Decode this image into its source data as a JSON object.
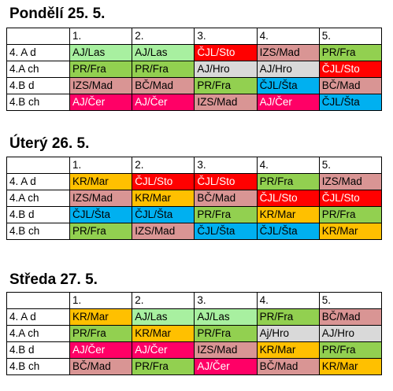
{
  "colors": {
    "lightgreen": "#a8f0a0",
    "green": "#92d050",
    "red": "#ff0000",
    "magenta": "#ff0066",
    "rose": "#d99594",
    "blue": "#00b0f0",
    "gray": "#d9d9d9",
    "orange": "#ffc000"
  },
  "days": [
    {
      "title": "Pondělí 25. 5.",
      "periods": [
        "1.",
        "2.",
        "3.",
        "4.",
        "5."
      ],
      "rows": [
        {
          "cls": "4. A d",
          "cells": [
            {
              "t": "AJ/Las",
              "c": "lightgreen"
            },
            {
              "t": "AJ/Las",
              "c": "lightgreen"
            },
            {
              "t": "ČJL/Sto",
              "c": "red"
            },
            {
              "t": "IZS/Mad",
              "c": "rose"
            },
            {
              "t": "PR/Fra",
              "c": "green"
            }
          ]
        },
        {
          "cls": "4.A ch",
          "cells": [
            {
              "t": "PR/Fra",
              "c": "green"
            },
            {
              "t": "PR/Fra",
              "c": "green"
            },
            {
              "t": "AJ/Hro",
              "c": "gray"
            },
            {
              "t": "AJ/Hro",
              "c": "gray"
            },
            {
              "t": "ČJL/Sto",
              "c": "red"
            }
          ]
        },
        {
          "cls": "4.B d",
          "cells": [
            {
              "t": "IZS/Mad",
              "c": "rose"
            },
            {
              "t": "BČ/Mad",
              "c": "rose"
            },
            {
              "t": "PR/Fra",
              "c": "green"
            },
            {
              "t": "ČJL/Šta",
              "c": "blue"
            },
            {
              "t": "BČ/Mad",
              "c": "rose"
            }
          ]
        },
        {
          "cls": "4.B ch",
          "cells": [
            {
              "t": "AJ/Čer",
              "c": "magenta"
            },
            {
              "t": "AJ/Čer",
              "c": "magenta"
            },
            {
              "t": "IZS/Mad",
              "c": "rose"
            },
            {
              "t": "AJ/Čer",
              "c": "magenta"
            },
            {
              "t": "ČJL/Šta",
              "c": "blue"
            }
          ]
        }
      ]
    },
    {
      "title": "Úterý 26. 5.",
      "periods": [
        "1.",
        "2.",
        "3.",
        "4.",
        "5."
      ],
      "rows": [
        {
          "cls": "4. A d",
          "cells": [
            {
              "t": "KR/Mar",
              "c": "orange"
            },
            {
              "t": "ČJL/Sto",
              "c": "red"
            },
            {
              "t": "ČJL/Sto",
              "c": "red"
            },
            {
              "t": "PR/Fra",
              "c": "green"
            },
            {
              "t": "IZS/Mad",
              "c": "rose"
            }
          ]
        },
        {
          "cls": "4.A ch",
          "cells": [
            {
              "t": "IZS/Mad",
              "c": "rose"
            },
            {
              "t": "KR/Mar",
              "c": "orange"
            },
            {
              "t": "BČ/Mad",
              "c": "rose"
            },
            {
              "t": "ČJL/Sto",
              "c": "red"
            },
            {
              "t": "ČJL/Sto",
              "c": "red"
            }
          ]
        },
        {
          "cls": "4.B d",
          "cells": [
            {
              "t": "ČJL/Šta",
              "c": "blue"
            },
            {
              "t": "ČJL/Šta",
              "c": "blue"
            },
            {
              "t": "PR/Fra",
              "c": "green"
            },
            {
              "t": "KR/Mar",
              "c": "orange"
            },
            {
              "t": "PR/Fra",
              "c": "green"
            }
          ]
        },
        {
          "cls": "4.B ch",
          "cells": [
            {
              "t": "PR/Fra",
              "c": "green"
            },
            {
              "t": "IZS/Mad",
              "c": "rose"
            },
            {
              "t": "ČJL/Šta",
              "c": "blue"
            },
            {
              "t": "ČJL/Šta",
              "c": "blue"
            },
            {
              "t": "KR/Mar",
              "c": "orange"
            }
          ]
        }
      ]
    },
    {
      "title": "Středa 27. 5.",
      "periods": [
        "1.",
        "2.",
        "3.",
        "4.",
        "5."
      ],
      "rows": [
        {
          "cls": "4. A d",
          "cells": [
            {
              "t": "KR/Mar",
              "c": "orange"
            },
            {
              "t": "AJ/Las",
              "c": "lightgreen"
            },
            {
              "t": "AJ/Las",
              "c": "lightgreen"
            },
            {
              "t": "PR/Fra",
              "c": "green"
            },
            {
              "t": "BČ/Mad",
              "c": "rose"
            }
          ]
        },
        {
          "cls": "4.A ch",
          "cells": [
            {
              "t": "PR/Fra",
              "c": "green"
            },
            {
              "t": "KR/Mar",
              "c": "orange"
            },
            {
              "t": "PR/Fra",
              "c": "green"
            },
            {
              "t": "Aj/Hro",
              "c": "gray"
            },
            {
              "t": "AJ/Hro",
              "c": "gray"
            }
          ]
        },
        {
          "cls": "4.B d",
          "cells": [
            {
              "t": "AJ/Čer",
              "c": "magenta"
            },
            {
              "t": "AJ/Čer",
              "c": "magenta"
            },
            {
              "t": "IZS/Mad",
              "c": "rose"
            },
            {
              "t": "KR/Mar",
              "c": "orange"
            },
            {
              "t": "PR/Fra",
              "c": "green"
            }
          ]
        },
        {
          "cls": "4.B ch",
          "cells": [
            {
              "t": "BČ/Mad",
              "c": "rose"
            },
            {
              "t": "PR/Fra",
              "c": "green"
            },
            {
              "t": "AJ/Čer",
              "c": "magenta"
            },
            {
              "t": "BČ/Mad",
              "c": "rose"
            },
            {
              "t": "KR/Mar",
              "c": "orange"
            }
          ]
        }
      ]
    }
  ]
}
